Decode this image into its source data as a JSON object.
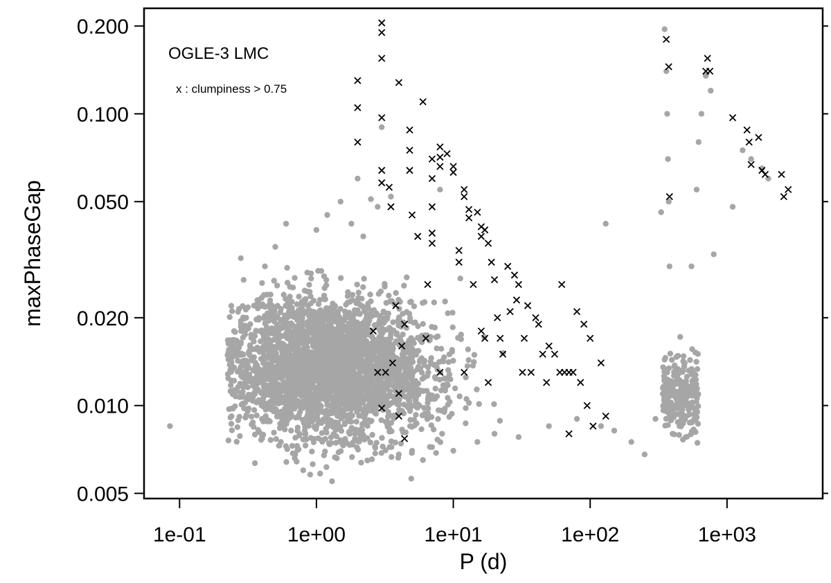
{
  "chart_data": {
    "type": "scatter",
    "title": "",
    "xlabel": "P (d)",
    "ylabel": "maxPhaseGap",
    "xscale": "log",
    "yscale": "log",
    "xlim": [
      0.055,
      5000
    ],
    "ylim": [
      0.0048,
      0.23
    ],
    "x_ticks": [
      {
        "value": 0.1,
        "label": "1e-01"
      },
      {
        "value": 1,
        "label": "1e+00"
      },
      {
        "value": 10,
        "label": "1e+01"
      },
      {
        "value": 100,
        "label": "1e+02"
      },
      {
        "value": 1000,
        "label": "1e+03"
      }
    ],
    "y_ticks": [
      {
        "value": 0.005,
        "label": "0.005"
      },
      {
        "value": 0.01,
        "label": "0.010"
      },
      {
        "value": 0.02,
        "label": "0.020"
      },
      {
        "value": 0.05,
        "label": "0.050"
      },
      {
        "value": 0.1,
        "label": "0.100"
      },
      {
        "value": 0.2,
        "label": "0.200"
      }
    ],
    "grid": false,
    "annotations": {
      "dataset": "OGLE-3 LMC",
      "marker_note": "x : clumpiness > 0.75"
    },
    "series": [
      {
        "marker": "circle",
        "color": "#a6a6a6",
        "points": [
          [
            0.085,
            0.0085
          ],
          [
            0.25,
            0.018
          ],
          [
            0.28,
            0.032
          ],
          [
            0.3,
            0.012
          ],
          [
            0.32,
            0.0105
          ],
          [
            0.35,
            0.022
          ],
          [
            0.4,
            0.009
          ],
          [
            0.42,
            0.03
          ],
          [
            0.5,
            0.035
          ],
          [
            0.55,
            0.0075
          ],
          [
            0.6,
            0.042
          ],
          [
            0.7,
            0.0068
          ],
          [
            0.8,
            0.006
          ],
          [
            0.9,
            0.0058
          ],
          [
            1.0,
            0.04
          ],
          [
            1.2,
            0.045
          ],
          [
            1.3,
            0.0055
          ],
          [
            1.5,
            0.05
          ],
          [
            1.8,
            0.042
          ],
          [
            2.0,
            0.06
          ],
          [
            2.2,
            0.038
          ],
          [
            2.5,
            0.051
          ],
          [
            2.8,
            0.048
          ],
          [
            3.0,
            0.09
          ],
          [
            3.5,
            0.052
          ],
          [
            4.0,
            0.0068
          ],
          [
            5.0,
            0.007
          ],
          [
            6.0,
            0.0065
          ],
          [
            7.0,
            0.0072
          ],
          [
            8.0,
            0.055
          ],
          [
            10,
            0.007
          ],
          [
            15,
            0.0075
          ],
          [
            20,
            0.008
          ],
          [
            30,
            0.0078
          ],
          [
            50,
            0.0085
          ],
          [
            80,
            0.009
          ],
          [
            120,
            0.0085
          ],
          [
            130,
            0.042
          ],
          [
            150,
            0.0082
          ],
          [
            200,
            0.0075
          ],
          [
            250,
            0.0068
          ],
          [
            300,
            0.009
          ],
          [
            350,
            0.195
          ],
          [
            360,
            0.14
          ],
          [
            365,
            0.1
          ],
          [
            370,
            0.07
          ],
          [
            375,
            0.05
          ],
          [
            380,
            0.03
          ],
          [
            330,
            0.046
          ],
          [
            400,
            0.008
          ],
          [
            450,
            0.0085
          ],
          [
            500,
            0.0078
          ],
          [
            550,
            0.03
          ],
          [
            600,
            0.055
          ],
          [
            620,
            0.08
          ],
          [
            650,
            0.1
          ],
          [
            700,
            0.135
          ],
          [
            760,
            0.12
          ],
          [
            800,
            0.033
          ],
          [
            1100,
            0.048
          ],
          [
            1300,
            0.075
          ],
          [
            1500,
            0.07
          ],
          [
            1800,
            0.065
          ],
          [
            2000,
            0.06
          ]
        ]
      },
      {
        "marker": "cross",
        "color": "#000000",
        "points": [
          [
            2.0,
            0.13
          ],
          [
            2.0,
            0.105
          ],
          [
            2.0,
            0.08
          ],
          [
            2.6,
            0.018
          ],
          [
            2.8,
            0.013
          ],
          [
            3.0,
            0.205
          ],
          [
            3.0,
            0.19
          ],
          [
            3.0,
            0.155
          ],
          [
            3.0,
            0.097
          ],
          [
            3.0,
            0.064
          ],
          [
            3.0,
            0.058
          ],
          [
            3.0,
            0.0098
          ],
          [
            3.2,
            0.013
          ],
          [
            3.4,
            0.056
          ],
          [
            3.5,
            0.048
          ],
          [
            3.6,
            0.014
          ],
          [
            3.8,
            0.022
          ],
          [
            4.0,
            0.128
          ],
          [
            4.0,
            0.011
          ],
          [
            4.0,
            0.0092
          ],
          [
            4.2,
            0.016
          ],
          [
            4.4,
            0.019
          ],
          [
            4.4,
            0.0077
          ],
          [
            4.8,
            0.088
          ],
          [
            4.8,
            0.075
          ],
          [
            4.8,
            0.064
          ],
          [
            5.0,
            0.045
          ],
          [
            5.5,
            0.038
          ],
          [
            6.0,
            0.11
          ],
          [
            6.3,
            0.017
          ],
          [
            6.5,
            0.026
          ],
          [
            7.0,
            0.07
          ],
          [
            7.0,
            0.06
          ],
          [
            7.0,
            0.048
          ],
          [
            7.0,
            0.039
          ],
          [
            7.0,
            0.036
          ],
          [
            8.0,
            0.077
          ],
          [
            8.0,
            0.071
          ],
          [
            8.0,
            0.066
          ],
          [
            8.0,
            0.013
          ],
          [
            9.0,
            0.073
          ],
          [
            10,
            0.066
          ],
          [
            10,
            0.063
          ],
          [
            11,
            0.034
          ],
          [
            11,
            0.031
          ],
          [
            12,
            0.055
          ],
          [
            12,
            0.052
          ],
          [
            12,
            0.013
          ],
          [
            13,
            0.047
          ],
          [
            13,
            0.044
          ],
          [
            14,
            0.026
          ],
          [
            15,
            0.046
          ],
          [
            16,
            0.041
          ],
          [
            16,
            0.038
          ],
          [
            16,
            0.018
          ],
          [
            17,
            0.04
          ],
          [
            17,
            0.017
          ],
          [
            18,
            0.036
          ],
          [
            18,
            0.012
          ],
          [
            19,
            0.031
          ],
          [
            20,
            0.027
          ],
          [
            21,
            0.02
          ],
          [
            22,
            0.017
          ],
          [
            23,
            0.015
          ],
          [
            25,
            0.03
          ],
          [
            26,
            0.021
          ],
          [
            28,
            0.028
          ],
          [
            29,
            0.023
          ],
          [
            30,
            0.026
          ],
          [
            32,
            0.013
          ],
          [
            33,
            0.017
          ],
          [
            35,
            0.022
          ],
          [
            37,
            0.013
          ],
          [
            40,
            0.02
          ],
          [
            42,
            0.019
          ],
          [
            45,
            0.015
          ],
          [
            48,
            0.012
          ],
          [
            50,
            0.016
          ],
          [
            55,
            0.015
          ],
          [
            60,
            0.013
          ],
          [
            62,
            0.026
          ],
          [
            65,
            0.013
          ],
          [
            70,
            0.008
          ],
          [
            70,
            0.013
          ],
          [
            75,
            0.013
          ],
          [
            80,
            0.021
          ],
          [
            85,
            0.012
          ],
          [
            90,
            0.019
          ],
          [
            95,
            0.01
          ],
          [
            100,
            0.017
          ],
          [
            105,
            0.0085
          ],
          [
            120,
            0.014
          ],
          [
            130,
            0.0092
          ],
          [
            360,
            0.18
          ],
          [
            375,
            0.145
          ],
          [
            380,
            0.052
          ],
          [
            700,
            0.14
          ],
          [
            720,
            0.155
          ],
          [
            750,
            0.14
          ],
          [
            1100,
            0.097
          ],
          [
            1400,
            0.088
          ],
          [
            1450,
            0.08
          ],
          [
            1500,
            0.067
          ],
          [
            1700,
            0.083
          ],
          [
            1800,
            0.064
          ],
          [
            1900,
            0.062
          ],
          [
            2500,
            0.062
          ],
          [
            2600,
            0.052
          ],
          [
            2800,
            0.055
          ]
        ]
      }
    ]
  }
}
